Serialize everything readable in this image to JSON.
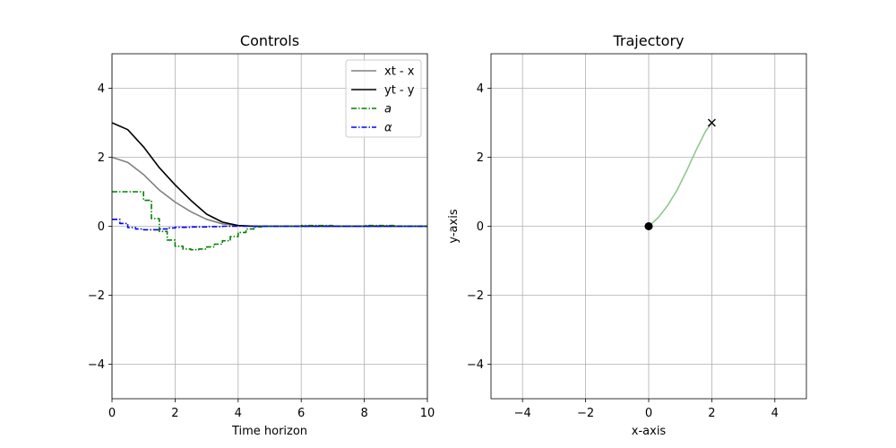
{
  "chart_data": [
    {
      "type": "line",
      "title": "Controls",
      "xlabel": "Time horizon",
      "ylabel": "",
      "xlim": [
        0,
        10
      ],
      "ylim": [
        -5,
        5
      ],
      "xticks": [
        0,
        2,
        4,
        6,
        8,
        10
      ],
      "yticks": [
        -4,
        -2,
        0,
        2,
        4
      ],
      "xtick_labels": [
        "0",
        "2",
        "4",
        "6",
        "8",
        "10"
      ],
      "ytick_labels": [
        "−4",
        "−2",
        "0",
        "2",
        "4"
      ],
      "grid": true,
      "legend_position": "top-right",
      "series": [
        {
          "name": "xt - x",
          "color": "#808080",
          "style": "solid",
          "x": [
            0,
            0.5,
            1,
            1.5,
            2,
            2.5,
            3,
            3.5,
            4,
            4.5,
            5,
            6,
            7,
            8,
            9,
            10
          ],
          "y": [
            2.0,
            1.85,
            1.5,
            1.05,
            0.7,
            0.42,
            0.2,
            0.07,
            0.02,
            0.0,
            0.0,
            0.0,
            0.0,
            0.0,
            0.0,
            0.0
          ]
        },
        {
          "name": "yt - y",
          "color": "#000000",
          "style": "solid",
          "x": [
            0,
            0.5,
            1,
            1.5,
            2,
            2.5,
            3,
            3.5,
            4,
            4.5,
            5,
            6,
            7,
            8,
            9,
            10
          ],
          "y": [
            3.0,
            2.8,
            2.3,
            1.7,
            1.2,
            0.75,
            0.35,
            0.12,
            0.02,
            0.0,
            0.0,
            0.0,
            0.0,
            0.0,
            0.0,
            0.0
          ]
        },
        {
          "name": "a",
          "color": "#008000",
          "style": "dashdot-step",
          "x": [
            0,
            0.5,
            1.0,
            1.25,
            1.5,
            1.75,
            2.0,
            2.25,
            2.5,
            2.75,
            3.0,
            3.25,
            3.5,
            3.75,
            4.0,
            4.25,
            4.5,
            4.75,
            5.0,
            6.0,
            7.0,
            8.0,
            9.0,
            10.0
          ],
          "y": [
            1.0,
            1.0,
            0.75,
            0.22,
            -0.15,
            -0.4,
            -0.58,
            -0.66,
            -0.68,
            -0.66,
            -0.6,
            -0.52,
            -0.42,
            -0.3,
            -0.18,
            -0.08,
            -0.02,
            0.0,
            0.0,
            0.02,
            0.0,
            0.02,
            0.0,
            0.0
          ]
        },
        {
          "name": "α",
          "color": "#0000ff",
          "style": "dashdot-step",
          "x": [
            0,
            0.25,
            0.5,
            0.75,
            1.0,
            1.25,
            1.5,
            1.75,
            2.0,
            2.5,
            3.0,
            3.5,
            4.0,
            5.0,
            6.0,
            7.0,
            8.0,
            9.0,
            10.0
          ],
          "y": [
            0.2,
            0.08,
            -0.04,
            -0.08,
            -0.1,
            -0.1,
            -0.08,
            -0.05,
            -0.03,
            -0.02,
            -0.01,
            0.0,
            0.0,
            0.0,
            0.0,
            0.0,
            0.0,
            0.0,
            0.0
          ]
        }
      ]
    },
    {
      "type": "line",
      "title": "Trajectory",
      "xlabel": "x-axis",
      "ylabel": "y-axis",
      "xlim": [
        -5,
        5
      ],
      "ylim": [
        -5,
        5
      ],
      "xticks": [
        -4,
        -2,
        0,
        2,
        4
      ],
      "yticks": [
        -4,
        -2,
        0,
        2,
        4
      ],
      "xtick_labels": [
        "−4",
        "−2",
        "0",
        "2",
        "4"
      ],
      "ytick_labels": [
        "−4",
        "−2",
        "0",
        "2",
        "4"
      ],
      "grid": true,
      "series": [
        {
          "color": "#90c890",
          "style": "solid",
          "x": [
            0,
            0.3,
            0.6,
            0.9,
            1.2,
            1.5,
            1.8,
            2.0
          ],
          "y": [
            0,
            0.25,
            0.6,
            1.05,
            1.6,
            2.2,
            2.75,
            3.0
          ]
        }
      ],
      "markers": [
        {
          "symbol": "circle",
          "x": 0,
          "y": 0,
          "color": "#000000"
        },
        {
          "symbol": "x",
          "x": 2,
          "y": 3,
          "color": "#000000"
        }
      ]
    }
  ]
}
